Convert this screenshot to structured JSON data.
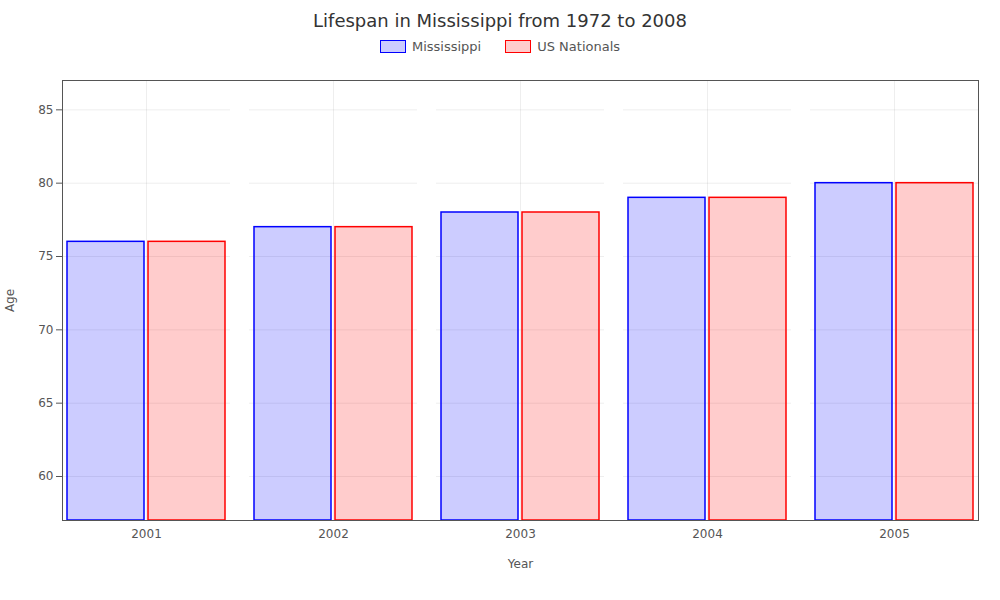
{
  "chart_data": {
    "type": "bar",
    "title": "Lifespan in Mississippi from 1972 to 2008",
    "xlabel": "Year",
    "ylabel": "Age",
    "categories": [
      "2001",
      "2002",
      "2003",
      "2004",
      "2005"
    ],
    "series": [
      {
        "name": "Mississippi",
        "color": "#0000ff",
        "values": [
          76.0,
          77.0,
          78.0,
          79.0,
          80.0
        ]
      },
      {
        "name": "US Nationals",
        "color": "#ff0000",
        "values": [
          76.0,
          77.0,
          78.0,
          79.0,
          80.0
        ]
      }
    ],
    "ylim": [
      57,
      87
    ],
    "yticks": [
      60,
      65,
      70,
      75,
      80,
      85
    ],
    "grid": true,
    "legend": "top"
  }
}
